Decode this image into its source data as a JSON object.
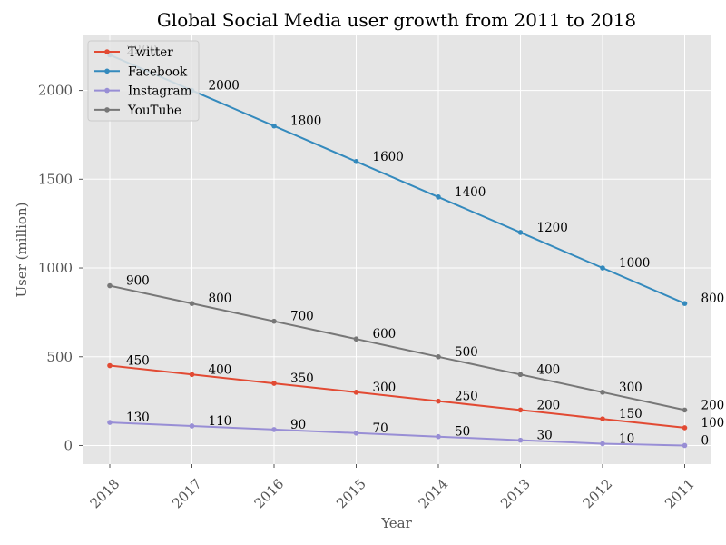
{
  "chart_data": {
    "type": "line",
    "title": "Global Social Media user growth from 2011 to 2018",
    "xlabel": "Year",
    "ylabel": "User (million)",
    "categories": [
      "2018",
      "2017",
      "2016",
      "2015",
      "2014",
      "2013",
      "2012",
      "2011"
    ],
    "ylim": [
      -105,
      2310
    ],
    "yticks": [
      0,
      500,
      1000,
      1500,
      2000
    ],
    "grid": true,
    "legend_position": "upper-left",
    "series": [
      {
        "name": "Twitter",
        "color": "#E24A33",
        "values": [
          450,
          400,
          350,
          300,
          250,
          200,
          150,
          100
        ]
      },
      {
        "name": "Facebook",
        "color": "#348ABD",
        "values": [
          2200,
          2000,
          1800,
          1600,
          1400,
          1200,
          1000,
          800
        ]
      },
      {
        "name": "Instagram",
        "color": "#988ED5",
        "values": [
          130,
          110,
          90,
          70,
          50,
          30,
          10,
          0
        ]
      },
      {
        "name": "YouTube",
        "color": "#777777",
        "values": [
          900,
          800,
          700,
          600,
          500,
          400,
          300,
          200
        ]
      }
    ]
  },
  "colors": {
    "plot_background": "#E5E5E5",
    "grid": "#FFFFFF"
  }
}
